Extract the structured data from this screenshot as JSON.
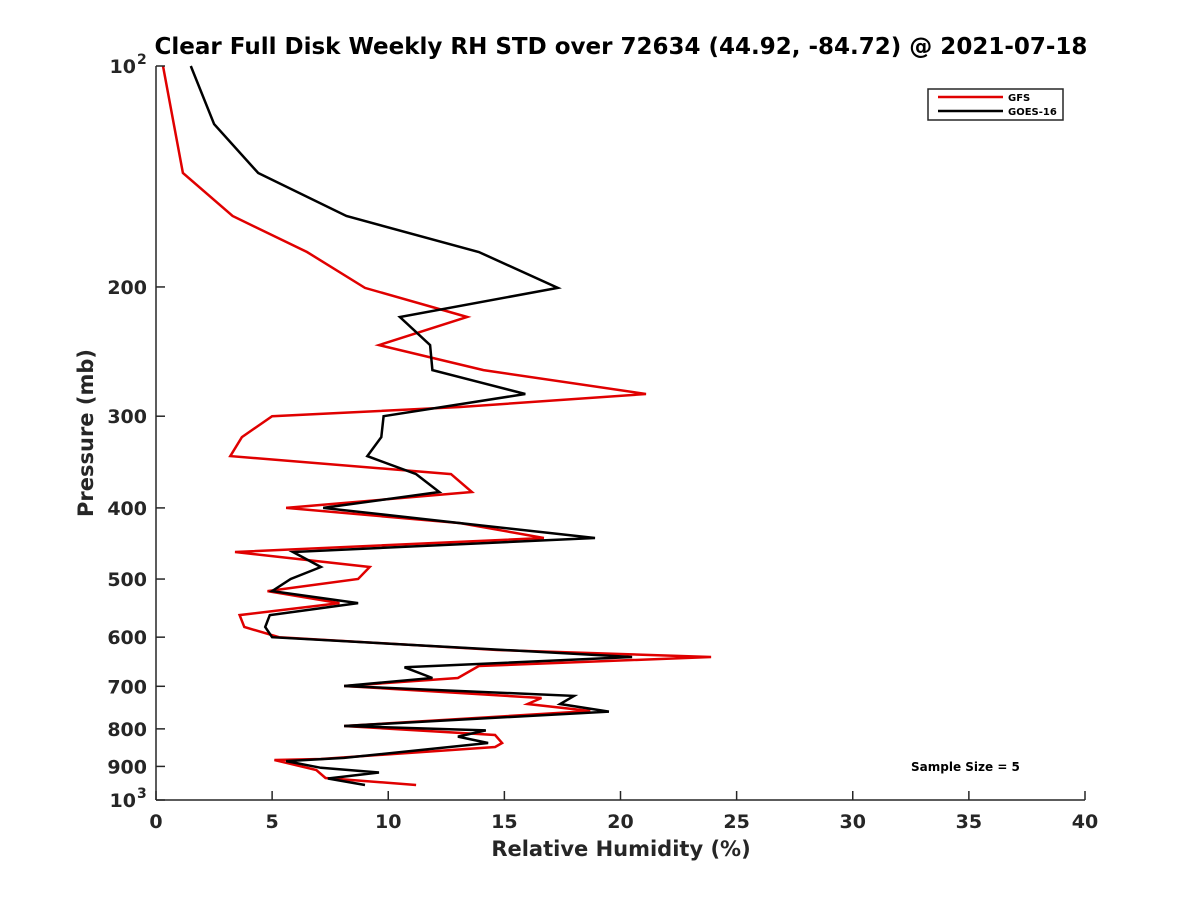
{
  "chart_data": {
    "type": "line",
    "title": "Clear Full Disk Weekly RH STD over 72634 (44.92, -84.72) @ 2021-07-18",
    "xlabel": "Relative Humidity (%)",
    "ylabel": "Pressure (mb)",
    "xlim": [
      0,
      40
    ],
    "ylim": [
      100,
      1000
    ],
    "yscale": "log",
    "yreversed": true,
    "grid": false,
    "x_ticks": [
      0,
      5,
      10,
      15,
      20,
      25,
      30,
      35,
      40
    ],
    "x_tick_labels": [
      "0",
      "5",
      "10",
      "15",
      "20",
      "25",
      "30",
      "35",
      "40"
    ],
    "y_ticks": [
      100,
      200,
      300,
      400,
      500,
      600,
      700,
      800,
      900,
      1000
    ],
    "y_tick_labels": [
      {
        "base": "10",
        "exp": "2"
      },
      {
        "text": "200"
      },
      {
        "text": "300"
      },
      {
        "text": "400"
      },
      {
        "text": "500"
      },
      {
        "text": "600"
      },
      {
        "text": "700"
      },
      {
        "text": "800"
      },
      {
        "text": "900"
      },
      {
        "base": "10",
        "exp": "3"
      }
    ],
    "legend": {
      "placement": "top-right",
      "entries": [
        "GFS",
        "GOES-16"
      ]
    },
    "annotation": "Sample Size = 5",
    "series": [
      {
        "name": "GFS",
        "color": "#e00000",
        "points": [
          [
            0.3,
            100
          ],
          [
            1.16,
            139.9
          ],
          [
            3.3,
            160.1
          ],
          [
            6.5,
            179.2
          ],
          [
            9.0,
            200.6
          ],
          [
            13.4,
            219.8
          ],
          [
            9.6,
            240
          ],
          [
            14.1,
            259.6
          ],
          [
            21.1,
            279.8
          ],
          [
            13.1,
            291.5
          ],
          [
            5.0,
            300
          ],
          [
            3.7,
            320.3
          ],
          [
            3.2,
            340
          ],
          [
            12.7,
            359.7
          ],
          [
            13.6,
            380.5
          ],
          [
            5.6,
            400
          ],
          [
            13.1,
            419.5
          ],
          [
            16.7,
            439.6
          ],
          [
            3.4,
            459.3
          ],
          [
            9.2,
            481.5
          ],
          [
            8.7,
            500
          ],
          [
            4.8,
            519.3
          ],
          [
            7.9,
            539.2
          ],
          [
            3.6,
            559.8
          ],
          [
            3.8,
            581.2
          ],
          [
            5.3,
            600
          ],
          [
            14.7,
            624.6
          ],
          [
            23.9,
            638.6
          ],
          [
            13.9,
            656.9
          ],
          [
            13.0,
            682.1
          ],
          [
            8.1,
            699.4
          ],
          [
            16.6,
            726.1
          ],
          [
            16.0,
            740.0
          ],
          [
            18.7,
            756.4
          ],
          [
            8.1,
            792.9
          ],
          [
            14.6,
            815.5
          ],
          [
            14.9,
            836.3
          ],
          [
            14.6,
            846.9
          ],
          [
            7.1,
            879.3
          ],
          [
            5.1,
            882.2
          ],
          [
            6.9,
            910.3
          ],
          [
            7.3,
            933.3
          ],
          [
            11.2,
            954.0
          ]
        ]
      },
      {
        "name": "GOES-16",
        "color": "#000000",
        "points": [
          [
            1.5,
            100
          ],
          [
            2.5,
            120
          ],
          [
            4.4,
            139.9
          ],
          [
            8.2,
            160.1
          ],
          [
            13.9,
            179.2
          ],
          [
            17.3,
            200.6
          ],
          [
            10.5,
            219.8
          ],
          [
            11.8,
            240
          ],
          [
            11.9,
            259.6
          ],
          [
            15.9,
            279.8
          ],
          [
            9.8,
            300
          ],
          [
            9.7,
            320.3
          ],
          [
            9.1,
            340
          ],
          [
            11.2,
            359.7
          ],
          [
            12.2,
            380.5
          ],
          [
            7.2,
            400
          ],
          [
            13.1,
            419.5
          ],
          [
            18.9,
            439.6
          ],
          [
            5.9,
            459.3
          ],
          [
            7.1,
            481.5
          ],
          [
            5.8,
            500
          ],
          [
            5.0,
            519.3
          ],
          [
            8.7,
            539.2
          ],
          [
            4.9,
            559.8
          ],
          [
            4.7,
            581.2
          ],
          [
            5.0,
            600
          ],
          [
            20.5,
            638.6
          ],
          [
            10.7,
            659.5
          ],
          [
            11.9,
            682.1
          ],
          [
            8.1,
            699.4
          ],
          [
            18.0,
            721.3
          ],
          [
            17.4,
            740.0
          ],
          [
            19.5,
            757.9
          ],
          [
            8.1,
            792.9
          ],
          [
            14.2,
            803.9
          ],
          [
            13.0,
            819.7
          ],
          [
            14.3,
            836.3
          ],
          [
            8.1,
            876.3
          ],
          [
            5.6,
            885.0
          ],
          [
            7.1,
            903.9
          ],
          [
            9.6,
            917.4
          ],
          [
            7.4,
            934.8
          ],
          [
            9.0,
            954.0
          ]
        ]
      }
    ]
  }
}
